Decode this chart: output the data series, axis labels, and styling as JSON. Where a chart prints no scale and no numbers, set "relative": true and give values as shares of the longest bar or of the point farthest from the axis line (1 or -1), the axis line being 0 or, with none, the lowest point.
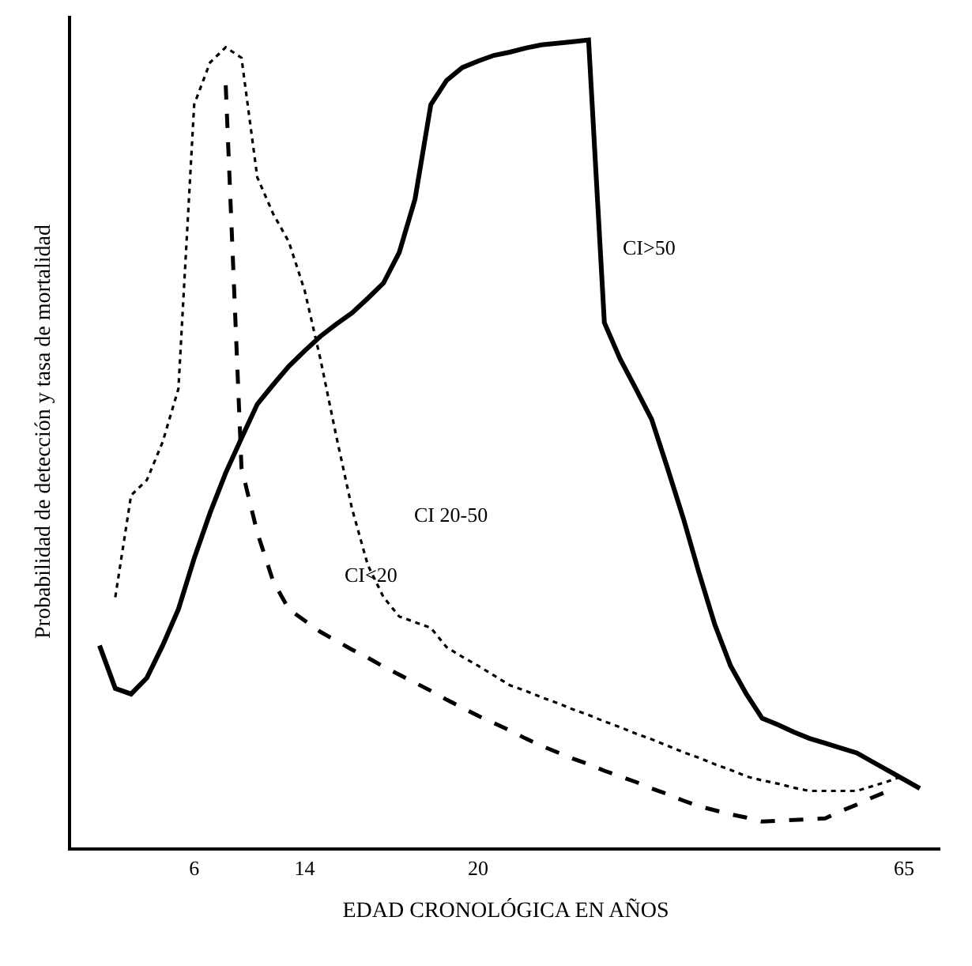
{
  "chart_data": {
    "type": "line",
    "relative": true,
    "xlabel": "EDAD CRONOLÓGICA EN AÑOS",
    "ylabel": "Probabilidad de detección y tasa de mortalidad",
    "tick_labels": "x",
    "marker": "none",
    "categories": [
      null,
      null,
      null,
      null,
      null,
      null,
      "6",
      null,
      null,
      null,
      null,
      null,
      null,
      "14",
      null,
      null,
      null,
      null,
      null,
      null,
      null,
      null,
      null,
      null,
      "20",
      null,
      null,
      null,
      null,
      null,
      null,
      null,
      null,
      null,
      null,
      null,
      null,
      null,
      null,
      null,
      null,
      null,
      null,
      null,
      null,
      null,
      null,
      null,
      null,
      null,
      null,
      "65",
      null
    ],
    "series": [
      {
        "color": "#000000",
        "line_style": "solid",
        "values": [
          0.25,
          0.197,
          0.19,
          0.21,
          0.25,
          0.295,
          0.358,
          0.414,
          0.464,
          0.507,
          0.549,
          0.573,
          0.596,
          0.615,
          0.633,
          0.648,
          0.662,
          0.68,
          0.699,
          0.737,
          0.803,
          0.92,
          0.95,
          0.966,
          0.974,
          0.981,
          0.985,
          0.99,
          0.994,
          0.996,
          0.998,
          1,
          0.65,
          0.605,
          0.568,
          0.53,
          0.47,
          0.408,
          0.34,
          0.276,
          0.225,
          0.19,
          0.16,
          0.152,
          0.143,
          0.135,
          0.129,
          0.123,
          0.117,
          0.106,
          0.095,
          0.084,
          0.073
        ]
      },
      {
        "color": "#000000",
        "line_style": "dotted",
        "values": [
          null,
          0.31,
          0.436,
          0.455,
          0.502,
          0.568,
          0.92,
          0.972,
          0.991,
          0.978,
          0.83,
          0.785,
          0.75,
          0.69,
          0.605,
          0.51,
          0.42,
          0.35,
          0.31,
          0.286,
          0.279,
          0.272,
          0.248,
          0.236,
          0.225,
          0.213,
          0.201,
          0.194,
          0.186,
          0.179,
          0.171,
          0.164,
          0.156,
          0.149,
          0.141,
          0.134,
          0.126,
          0.118,
          0.111,
          0.103,
          0.096,
          0.088,
          0.083,
          0.079,
          0.074,
          0.07,
          0.07,
          0.07,
          0.07,
          0.076,
          0.082,
          0.089,
          null
        ]
      },
      {
        "color": "#000000",
        "line_style": "dashed",
        "values": [
          null,
          null,
          null,
          null,
          null,
          null,
          null,
          null,
          0.944,
          0.47,
          0.39,
          0.33,
          0.295,
          0.281,
          0.267,
          0.256,
          0.245,
          0.235,
          0.224,
          0.214,
          0.204,
          0.194,
          0.183,
          0.173,
          0.163,
          0.154,
          0.145,
          0.135,
          0.126,
          0.118,
          0.11,
          0.103,
          0.095,
          0.088,
          0.081,
          0.073,
          0.066,
          0.058,
          0.051,
          0.046,
          0.041,
          0.037,
          0.032,
          0.033,
          0.034,
          0.035,
          0.036,
          0.045,
          0.053,
          0.062,
          0.07,
          null,
          null
        ]
      }
    ],
    "annotations": [
      "CI>50",
      "CI 20-50",
      "CI<20"
    ]
  }
}
